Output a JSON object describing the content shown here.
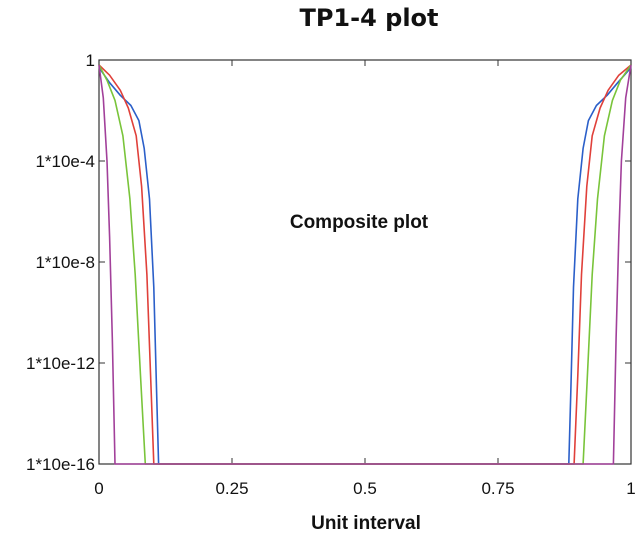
{
  "chart_data": {
    "type": "line",
    "title": "TP1-4 plot",
    "xlabel": "Unit interval",
    "ylabel": "",
    "annotation": "Composite plot",
    "xlim": [
      0,
      1
    ],
    "ylim_exponent": [
      -16,
      0
    ],
    "yscale": "log",
    "x_ticks": [
      {
        "value": 0,
        "label": "0"
      },
      {
        "value": 0.25,
        "label": "0.25"
      },
      {
        "value": 0.5,
        "label": "0.5"
      },
      {
        "value": 0.75,
        "label": "0.75"
      },
      {
        "value": 1,
        "label": "1"
      }
    ],
    "y_ticks": [
      {
        "exp": 0,
        "label": "1"
      },
      {
        "exp": -4,
        "label": "1*10e-4"
      },
      {
        "exp": -8,
        "label": "1*10e-8"
      },
      {
        "exp": -12,
        "label": "1*10e-12"
      },
      {
        "exp": -16,
        "label": "1*10e-16"
      }
    ],
    "grid": false,
    "series": [
      {
        "color": "#2b5fc9",
        "points": [
          [
            0,
            -0.3
          ],
          [
            0.02,
            -0.9
          ],
          [
            0.04,
            -1.4
          ],
          [
            0.06,
            -1.8
          ],
          [
            0.075,
            -2.4
          ],
          [
            0.085,
            -3.5
          ],
          [
            0.095,
            -5.5
          ],
          [
            0.103,
            -9
          ],
          [
            0.108,
            -13
          ],
          [
            0.112,
            -16
          ],
          [
            0.883,
            -16
          ],
          [
            0.887,
            -13
          ],
          [
            0.892,
            -9
          ],
          [
            0.9,
            -5.5
          ],
          [
            0.91,
            -3.5
          ],
          [
            0.92,
            -2.4
          ],
          [
            0.935,
            -1.8
          ],
          [
            0.955,
            -1.4
          ],
          [
            0.975,
            -0.9
          ],
          [
            1,
            -0.3
          ]
        ]
      },
      {
        "color": "#e0403a",
        "points": [
          [
            0,
            -0.2
          ],
          [
            0.02,
            -0.6
          ],
          [
            0.04,
            -1.2
          ],
          [
            0.055,
            -1.9
          ],
          [
            0.07,
            -3
          ],
          [
            0.08,
            -5
          ],
          [
            0.09,
            -8.5
          ],
          [
            0.097,
            -12.5
          ],
          [
            0.103,
            -16
          ],
          [
            0.893,
            -16
          ],
          [
            0.9,
            -12.5
          ],
          [
            0.907,
            -8.5
          ],
          [
            0.917,
            -5
          ],
          [
            0.927,
            -3
          ],
          [
            0.942,
            -1.9
          ],
          [
            0.957,
            -1.2
          ],
          [
            0.977,
            -0.6
          ],
          [
            1,
            -0.2
          ]
        ]
      },
      {
        "color": "#79c43a",
        "points": [
          [
            0,
            -0.2
          ],
          [
            0.015,
            -0.8
          ],
          [
            0.03,
            -1.6
          ],
          [
            0.045,
            -3
          ],
          [
            0.058,
            -5.5
          ],
          [
            0.068,
            -8.5
          ],
          [
            0.078,
            -12.5
          ],
          [
            0.087,
            -16
          ],
          [
            0.91,
            -16
          ],
          [
            0.918,
            -12.5
          ],
          [
            0.927,
            -8.5
          ],
          [
            0.937,
            -5.5
          ],
          [
            0.95,
            -3
          ],
          [
            0.965,
            -1.6
          ],
          [
            0.98,
            -0.8
          ],
          [
            1,
            -0.2
          ]
        ]
      },
      {
        "color": "#a2409a",
        "points": [
          [
            0,
            -0.2
          ],
          [
            0.008,
            -1.5
          ],
          [
            0.015,
            -4
          ],
          [
            0.02,
            -7
          ],
          [
            0.025,
            -11
          ],
          [
            0.03,
            -16
          ],
          [
            0.967,
            -16
          ],
          [
            0.972,
            -11
          ],
          [
            0.977,
            -7
          ],
          [
            0.982,
            -4
          ],
          [
            0.99,
            -1.5
          ],
          [
            1,
            -0.2
          ]
        ]
      }
    ]
  }
}
